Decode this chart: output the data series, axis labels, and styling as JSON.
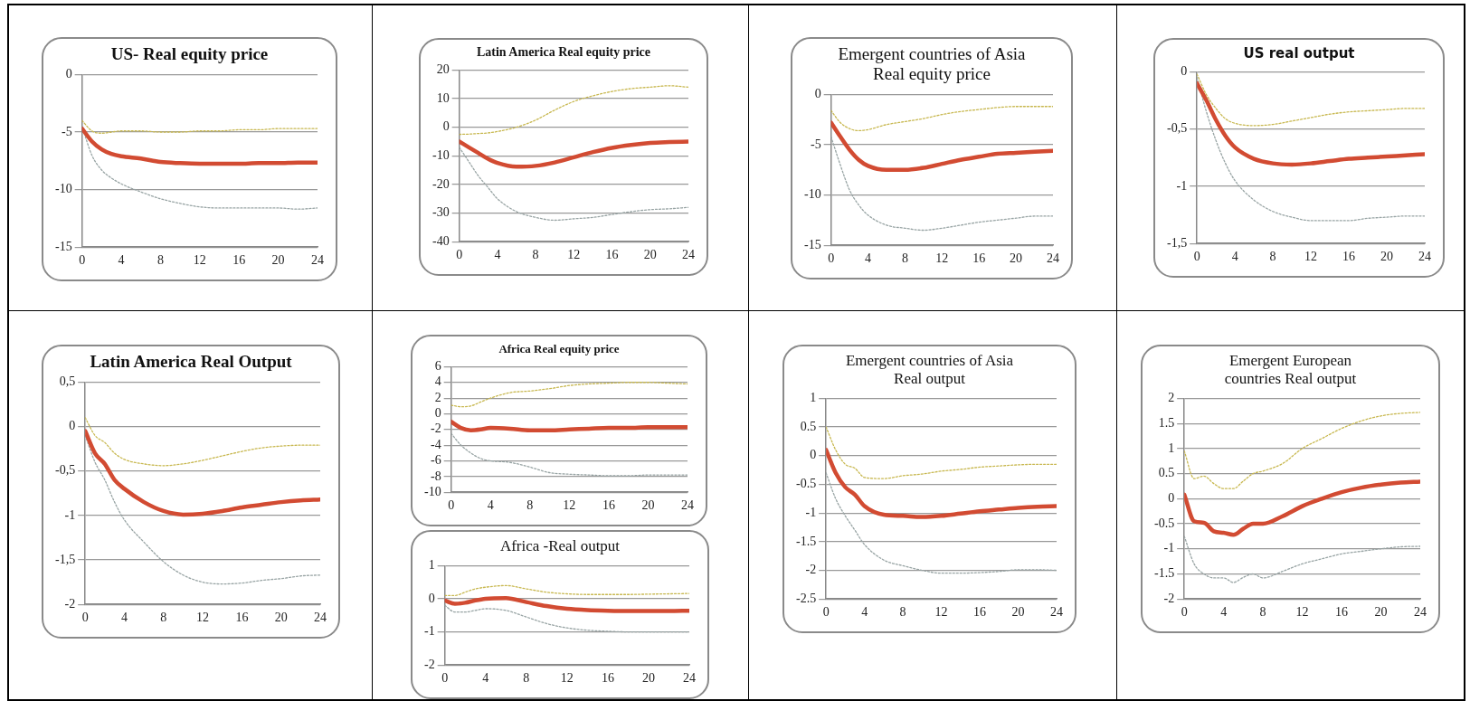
{
  "chart_data": [
    {
      "type": "line",
      "title": "US- Real equity price",
      "x": [
        0,
        1,
        2,
        3,
        4,
        6,
        8,
        10,
        12,
        14,
        16,
        18,
        20,
        22,
        24
      ],
      "xlim": [
        0,
        24
      ],
      "xticks": [
        0,
        4,
        8,
        12,
        16,
        20,
        24
      ],
      "ylim": [
        -15,
        0
      ],
      "yticks": [
        0,
        -5,
        -10,
        -15
      ],
      "grid": "y",
      "marker": "none",
      "series": [
        {
          "color": "#c8b850",
          "line_style": "dotted",
          "values": [
            -4,
            -4.9,
            -5.1,
            -5,
            -4.9,
            -4.9,
            -5,
            -5,
            -4.9,
            -4.9,
            -4.8,
            -4.8,
            -4.7,
            -4.7,
            -4.7
          ]
        },
        {
          "color": "#d24b32",
          "line_style": "solid",
          "values": [
            -4.7,
            -5.8,
            -6.5,
            -6.9,
            -7.1,
            -7.3,
            -7.6,
            -7.7,
            -7.75,
            -7.75,
            -7.75,
            -7.7,
            -7.7,
            -7.65,
            -7.65
          ]
        },
        {
          "color": "#98a4a4",
          "line_style": "dotted",
          "values": [
            -4.5,
            -7,
            -8.3,
            -9,
            -9.5,
            -10.2,
            -10.8,
            -11.2,
            -11.5,
            -11.6,
            -11.6,
            -11.6,
            -11.6,
            -11.7,
            -11.6
          ]
        }
      ]
    },
    {
      "type": "line",
      "title": "Latin America Real equity price",
      "x": [
        0,
        1,
        2,
        3,
        4,
        6,
        8,
        10,
        12,
        14,
        16,
        18,
        20,
        22,
        24
      ],
      "xlim": [
        0,
        24
      ],
      "xticks": [
        0,
        4,
        8,
        12,
        16,
        20,
        24
      ],
      "ylim": [
        -40,
        20
      ],
      "yticks": [
        20,
        10,
        0,
        -10,
        -20,
        -30,
        -40
      ],
      "grid": "y",
      "marker": "none",
      "series": [
        {
          "color": "#c8b850",
          "line_style": "dotted",
          "values": [
            -2.5,
            -2.4,
            -2.2,
            -2,
            -1.5,
            0,
            2.5,
            6,
            9,
            11,
            12.5,
            13.5,
            14,
            14.5,
            14
          ]
        },
        {
          "color": "#d24b32",
          "line_style": "solid",
          "values": [
            -5,
            -7,
            -9,
            -11,
            -12.5,
            -13.8,
            -13.5,
            -12.3,
            -10.5,
            -8.7,
            -7.2,
            -6.2,
            -5.5,
            -5.2,
            -5
          ]
        },
        {
          "color": "#98a4a4",
          "line_style": "dotted",
          "values": [
            -7,
            -12,
            -17,
            -21,
            -25,
            -29.5,
            -31.5,
            -32.5,
            -32,
            -31.5,
            -30.5,
            -29.5,
            -28.8,
            -28.5,
            -28
          ]
        }
      ]
    },
    {
      "type": "line",
      "title": "Emergent countries of Asia Real equity price",
      "x": [
        0,
        1,
        2,
        3,
        4,
        6,
        8,
        10,
        12,
        14,
        16,
        18,
        20,
        22,
        24
      ],
      "xlim": [
        0,
        24
      ],
      "xticks": [
        0,
        4,
        8,
        12,
        16,
        20,
        24
      ],
      "ylim": [
        -15,
        0
      ],
      "yticks": [
        0,
        -5,
        -10,
        -15
      ],
      "grid": "y",
      "marker": "none",
      "series": [
        {
          "color": "#c8b850",
          "line_style": "dotted",
          "values": [
            -1.6,
            -2.8,
            -3.4,
            -3.6,
            -3.5,
            -3,
            -2.7,
            -2.4,
            -2,
            -1.7,
            -1.5,
            -1.3,
            -1.2,
            -1.2,
            -1.2
          ]
        },
        {
          "color": "#d24b32",
          "line_style": "solid",
          "values": [
            -2.8,
            -4.2,
            -5.5,
            -6.5,
            -7.1,
            -7.5,
            -7.5,
            -7.3,
            -6.9,
            -6.5,
            -6.2,
            -5.9,
            -5.8,
            -5.7,
            -5.6
          ]
        },
        {
          "color": "#98a4a4",
          "line_style": "dotted",
          "values": [
            -4.2,
            -7,
            -9.5,
            -11,
            -12,
            -13,
            -13.3,
            -13.5,
            -13.3,
            -13,
            -12.7,
            -12.5,
            -12.3,
            -12.1,
            -12.1
          ]
        }
      ]
    },
    {
      "type": "line",
      "title": "US real output",
      "x": [
        0,
        1,
        2,
        3,
        4,
        6,
        8,
        10,
        12,
        14,
        16,
        18,
        20,
        22,
        24
      ],
      "xlim": [
        0,
        24
      ],
      "xticks": [
        0,
        4,
        8,
        12,
        16,
        20,
        24
      ],
      "ylim": [
        -1.5,
        0
      ],
      "yticks": [
        0,
        {
          "value": -0.5,
          "label": "-0,5"
        },
        -1,
        {
          "value": -1.5,
          "label": "-1,5"
        }
      ],
      "grid": "y",
      "marker": "none",
      "series": [
        {
          "color": "#c8b850",
          "line_style": "dotted",
          "values": [
            -0.02,
            -0.2,
            -0.32,
            -0.41,
            -0.45,
            -0.47,
            -0.46,
            -0.43,
            -0.4,
            -0.37,
            -0.35,
            -0.34,
            -0.33,
            -0.32,
            -0.32
          ]
        },
        {
          "color": "#d24b32",
          "line_style": "solid",
          "values": [
            -0.1,
            -0.25,
            -0.42,
            -0.56,
            -0.66,
            -0.76,
            -0.8,
            -0.81,
            -0.8,
            -0.78,
            -0.76,
            -0.75,
            -0.74,
            -0.73,
            -0.72
          ]
        },
        {
          "color": "#98a4a4",
          "line_style": "dotted",
          "values": [
            -0.05,
            -0.35,
            -0.6,
            -0.8,
            -0.95,
            -1.12,
            -1.22,
            -1.27,
            -1.3,
            -1.3,
            -1.3,
            -1.28,
            -1.27,
            -1.26,
            -1.26
          ]
        }
      ]
    },
    {
      "type": "line",
      "title": "Latin America Real Output",
      "x": [
        0,
        1,
        2,
        3,
        4,
        6,
        8,
        10,
        12,
        14,
        16,
        18,
        20,
        22,
        24
      ],
      "xlim": [
        0,
        24
      ],
      "xticks": [
        0,
        4,
        8,
        12,
        16,
        20,
        24
      ],
      "ylim": [
        -2,
        0.5
      ],
      "yticks": [
        {
          "value": 0.5,
          "label": "0,5"
        },
        0,
        {
          "value": -0.5,
          "label": "-0,5"
        },
        -1,
        {
          "value": -1.5,
          "label": "-1,5"
        },
        -2
      ],
      "grid": "y",
      "marker": "none",
      "series": [
        {
          "color": "#c8b850",
          "line_style": "dotted",
          "values": [
            0.1,
            -0.1,
            -0.18,
            -0.3,
            -0.37,
            -0.42,
            -0.44,
            -0.42,
            -0.38,
            -0.33,
            -0.28,
            -0.24,
            -0.22,
            -0.21,
            -0.21
          ]
        },
        {
          "color": "#d24b32",
          "line_style": "solid",
          "values": [
            -0.05,
            -0.3,
            -0.42,
            -0.6,
            -0.7,
            -0.85,
            -0.95,
            -0.99,
            -0.98,
            -0.95,
            -0.91,
            -0.88,
            -0.85,
            -0.83,
            -0.82
          ]
        },
        {
          "color": "#98a4a4",
          "line_style": "dotted",
          "values": [
            -0.1,
            -0.4,
            -0.6,
            -0.85,
            -1.05,
            -1.3,
            -1.52,
            -1.67,
            -1.75,
            -1.77,
            -1.76,
            -1.73,
            -1.71,
            -1.68,
            -1.67
          ]
        }
      ]
    },
    {
      "type": "line",
      "title": "Africa Real equity price",
      "x": [
        0,
        1,
        2,
        3,
        4,
        6,
        8,
        10,
        12,
        14,
        16,
        18,
        20,
        22,
        24
      ],
      "xlim": [
        0,
        24
      ],
      "xticks": [
        0,
        4,
        8,
        12,
        16,
        20,
        24
      ],
      "ylim": [
        -10,
        6
      ],
      "yticks": [
        6,
        4,
        2,
        0,
        -2,
        -4,
        -6,
        -8,
        -10
      ],
      "grid": "y",
      "marker": "none",
      "series": [
        {
          "color": "#c8b850",
          "line_style": "dotted",
          "values": [
            1.1,
            0.9,
            1,
            1.5,
            2,
            2.7,
            2.9,
            3.2,
            3.6,
            3.8,
            3.9,
            4,
            4,
            3.9,
            3.8
          ]
        },
        {
          "color": "#d24b32",
          "line_style": "solid",
          "values": [
            -1,
            -1.8,
            -2.1,
            -2,
            -1.8,
            -1.9,
            -2.1,
            -2.1,
            -2,
            -1.9,
            -1.8,
            -1.8,
            -1.7,
            -1.7,
            -1.7
          ]
        },
        {
          "color": "#98a4a4",
          "line_style": "dotted",
          "values": [
            -2.5,
            -4,
            -5,
            -5.7,
            -6,
            -6.2,
            -6.8,
            -7.5,
            -7.7,
            -7.8,
            -7.9,
            -7.9,
            -7.8,
            -7.8,
            -7.8
          ]
        }
      ]
    },
    {
      "type": "line",
      "title": "Africa -Real output",
      "x": [
        0,
        1,
        2,
        3,
        4,
        6,
        8,
        10,
        12,
        14,
        16,
        18,
        20,
        22,
        24
      ],
      "xlim": [
        0,
        24
      ],
      "xticks": [
        0,
        4,
        8,
        12,
        16,
        20,
        24
      ],
      "ylim": [
        -2,
        1
      ],
      "yticks": [
        1,
        0,
        -1,
        -2
      ],
      "grid": "y",
      "marker": "none",
      "series": [
        {
          "color": "#c8b850",
          "line_style": "dotted",
          "values": [
            0.1,
            0.1,
            0.2,
            0.3,
            0.35,
            0.4,
            0.3,
            0.2,
            0.15,
            0.13,
            0.13,
            0.13,
            0.14,
            0.15,
            0.16
          ]
        },
        {
          "color": "#d24b32",
          "line_style": "solid",
          "values": [
            -0.05,
            -0.15,
            -0.12,
            -0.05,
            0,
            0.02,
            -0.1,
            -0.22,
            -0.3,
            -0.34,
            -0.36,
            -0.37,
            -0.37,
            -0.37,
            -0.36
          ]
        },
        {
          "color": "#98a4a4",
          "line_style": "dotted",
          "values": [
            -0.2,
            -0.4,
            -0.4,
            -0.35,
            -0.3,
            -0.35,
            -0.55,
            -0.75,
            -0.88,
            -0.95,
            -0.98,
            -1,
            -1,
            -1,
            -1
          ]
        }
      ]
    },
    {
      "type": "line",
      "title": "Emergent countries of Asia Real output",
      "x": [
        0,
        1,
        2,
        3,
        4,
        6,
        8,
        10,
        12,
        14,
        16,
        18,
        20,
        22,
        24
      ],
      "xlim": [
        0,
        24
      ],
      "xticks": [
        0,
        4,
        8,
        12,
        16,
        20,
        24
      ],
      "ylim": [
        -2.5,
        1
      ],
      "yticks": [
        1,
        0.5,
        0,
        -0.5,
        -1,
        -1.5,
        -2,
        -2.5
      ],
      "grid": "y",
      "marker": "none",
      "series": [
        {
          "color": "#c8b850",
          "line_style": "dotted",
          "values": [
            0.5,
            0.1,
            -0.15,
            -0.22,
            -0.38,
            -0.4,
            -0.35,
            -0.32,
            -0.27,
            -0.24,
            -0.2,
            -0.18,
            -0.16,
            -0.15,
            -0.15
          ]
        },
        {
          "color": "#d24b32",
          "line_style": "solid",
          "values": [
            0.1,
            -0.3,
            -0.55,
            -0.68,
            -0.88,
            -1.03,
            -1.05,
            -1.07,
            -1.05,
            -1.01,
            -0.97,
            -0.94,
            -0.91,
            -0.89,
            -0.88
          ]
        },
        {
          "color": "#98a4a4",
          "line_style": "dotted",
          "values": [
            -0.3,
            -0.75,
            -1.05,
            -1.3,
            -1.55,
            -1.82,
            -1.92,
            -2,
            -2.05,
            -2.05,
            -2.04,
            -2.02,
            -1.99,
            -1.99,
            -2
          ]
        }
      ]
    },
    {
      "type": "line",
      "title": "Emergent European countries Real output",
      "x": [
        0,
        1,
        2,
        3,
        4,
        5,
        6,
        7,
        8,
        10,
        12,
        14,
        16,
        18,
        20,
        22,
        24
      ],
      "xlim": [
        0,
        24
      ],
      "xticks": [
        0,
        4,
        8,
        12,
        16,
        20,
        24
      ],
      "ylim": [
        -2,
        2
      ],
      "yticks": [
        2,
        1.5,
        1,
        0.5,
        0,
        -0.5,
        -1,
        -1.5,
        -2
      ],
      "grid": "y",
      "marker": "none",
      "series": [
        {
          "color": "#c8b850",
          "line_style": "dotted",
          "values": [
            0.95,
            0.4,
            0.45,
            0.3,
            0.2,
            0.2,
            0.35,
            0.5,
            0.55,
            0.7,
            1,
            1.2,
            1.4,
            1.55,
            1.65,
            1.7,
            1.72
          ]
        },
        {
          "color": "#d24b32",
          "line_style": "solid",
          "values": [
            0.08,
            -0.45,
            -0.48,
            -0.65,
            -0.68,
            -0.72,
            -0.6,
            -0.5,
            -0.5,
            -0.35,
            -0.15,
            0,
            0.13,
            0.22,
            0.28,
            0.32,
            0.34
          ]
        },
        {
          "color": "#98a4a4",
          "line_style": "dotted",
          "values": [
            -0.75,
            -1.3,
            -1.5,
            -1.58,
            -1.58,
            -1.67,
            -1.57,
            -1.5,
            -1.58,
            -1.45,
            -1.3,
            -1.2,
            -1.1,
            -1.05,
            -1,
            -0.96,
            -0.95
          ]
        }
      ]
    }
  ]
}
